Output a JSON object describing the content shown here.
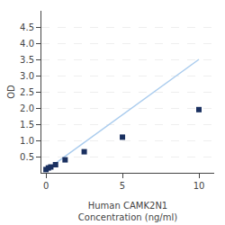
{
  "chart_data": {
    "type": "scatter",
    "xlabel": "Human CAMK2N1\nConcentration (ng/ml)",
    "ylabel": "OD",
    "series": [
      {
        "type": "line",
        "line_style": "solid",
        "color": "#aaccee",
        "x": [
          0,
          10
        ],
        "values": [
          0.08,
          3.5
        ]
      },
      {
        "type": "scatter",
        "marker": "square",
        "color": "#1a3060",
        "x": [
          0,
          0.156,
          0.313,
          0.625,
          1.25,
          2.5,
          5,
          10
        ],
        "values": [
          0.1,
          0.15,
          0.18,
          0.25,
          0.4,
          0.65,
          1.1,
          1.95
        ]
      }
    ],
    "xlim": [
      -0.3,
      11
    ],
    "xticks": [
      0,
      5,
      10
    ],
    "ylim": [
      0,
      5
    ],
    "yticks": [
      0.5,
      {
        "value": 1.0,
        "label": "1.0"
      },
      1.5,
      {
        "value": 2.0,
        "label": "2.0"
      },
      2.5,
      {
        "value": 3.0,
        "label": "3.0"
      },
      3.5,
      {
        "value": 4.0,
        "label": "4.0"
      },
      4.5
    ],
    "grid": "y"
  }
}
